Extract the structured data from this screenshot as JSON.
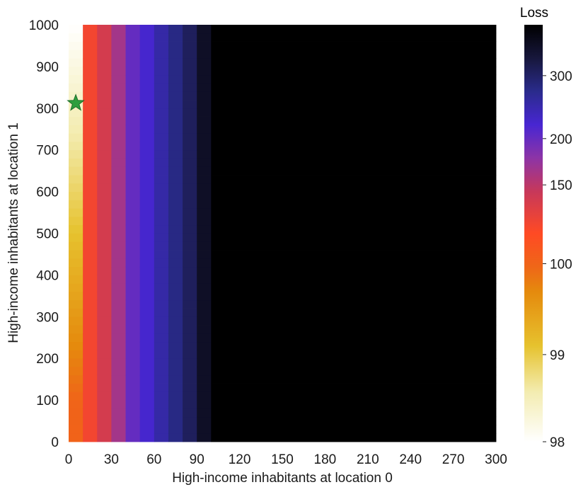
{
  "chart_data": {
    "type": "heatmap",
    "title": "",
    "xlabel": "High-income inhabitants at location 0",
    "ylabel": "High-income inhabitants at location 1",
    "xlim": [
      0,
      300
    ],
    "ylim": [
      0,
      1000
    ],
    "x_ticks": [
      0,
      30,
      60,
      90,
      120,
      150,
      180,
      210,
      240,
      270,
      300
    ],
    "y_ticks": [
      0,
      100,
      200,
      300,
      400,
      500,
      600,
      700,
      800,
      900,
      1000
    ],
    "x_bin_width": 10,
    "y_bin_width": 20,
    "columns": [
      {
        "x": [
          0,
          10
        ],
        "loss_y0": 100.2,
        "loss_y1000": 98.0
      },
      {
        "x": [
          10,
          20
        ],
        "loss_y0": 125,
        "loss_y1000": 125
      },
      {
        "x": [
          20,
          30
        ],
        "loss_y0": 140,
        "loss_y1000": 140
      },
      {
        "x": [
          30,
          40
        ],
        "loss_y0": 165,
        "loss_y1000": 165
      },
      {
        "x": [
          40,
          50
        ],
        "loss_y0": 200,
        "loss_y1000": 200
      },
      {
        "x": [
          50,
          60
        ],
        "loss_y0": 225,
        "loss_y1000": 225
      },
      {
        "x": [
          60,
          70
        ],
        "loss_y0": 255,
        "loss_y1000": 255
      },
      {
        "x": [
          70,
          80
        ],
        "loss_y0": 280,
        "loss_y1000": 280
      },
      {
        "x": [
          80,
          90
        ],
        "loss_y0": 305,
        "loss_y1000": 305
      },
      {
        "x": [
          90,
          100
        ],
        "loss_y0": 335,
        "loss_y1000": 335
      },
      {
        "x": [
          100,
          300
        ],
        "loss_y0": 400,
        "loss_y1000": 400
      }
    ],
    "marker": {
      "shape": "star",
      "x": 5,
      "y": 812,
      "color": "#2e9e3e"
    },
    "colorbar": {
      "title": "Loss",
      "ticks": [
        98,
        99,
        100,
        150,
        200,
        300
      ],
      "colormap": "CMRmap_r",
      "placement": "right"
    },
    "grid": false
  }
}
